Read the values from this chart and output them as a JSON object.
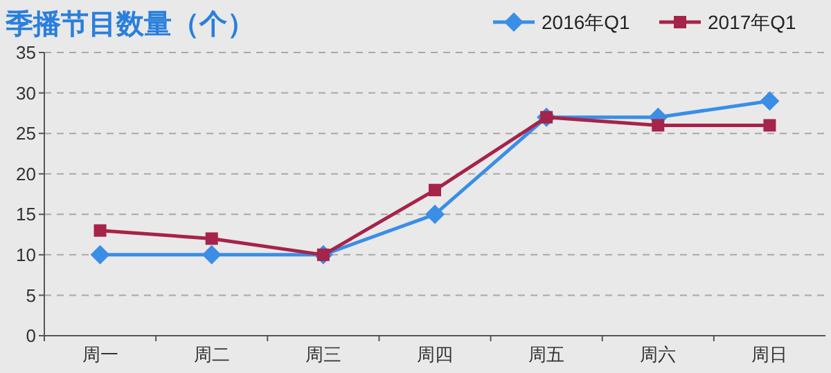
{
  "chart_data": {
    "type": "line",
    "title": "季播节目数量（个）",
    "categories": [
      "周一",
      "周二",
      "周三",
      "周四",
      "周五",
      "周六",
      "周日"
    ],
    "series": [
      {
        "name": "2016年Q1",
        "color": "#3a8ee6",
        "marker": "diamond",
        "values": [
          10,
          10,
          10,
          15,
          27,
          27,
          29
        ]
      },
      {
        "name": "2017年Q1",
        "color": "#a62349",
        "marker": "square",
        "values": [
          13,
          12,
          10,
          18,
          27,
          26,
          26
        ]
      }
    ],
    "ylim": [
      0,
      35
    ],
    "yticks": [
      0,
      5,
      10,
      15,
      20,
      25,
      30,
      35
    ],
    "grid": "y",
    "legend": "top right",
    "line_style": "solid"
  }
}
